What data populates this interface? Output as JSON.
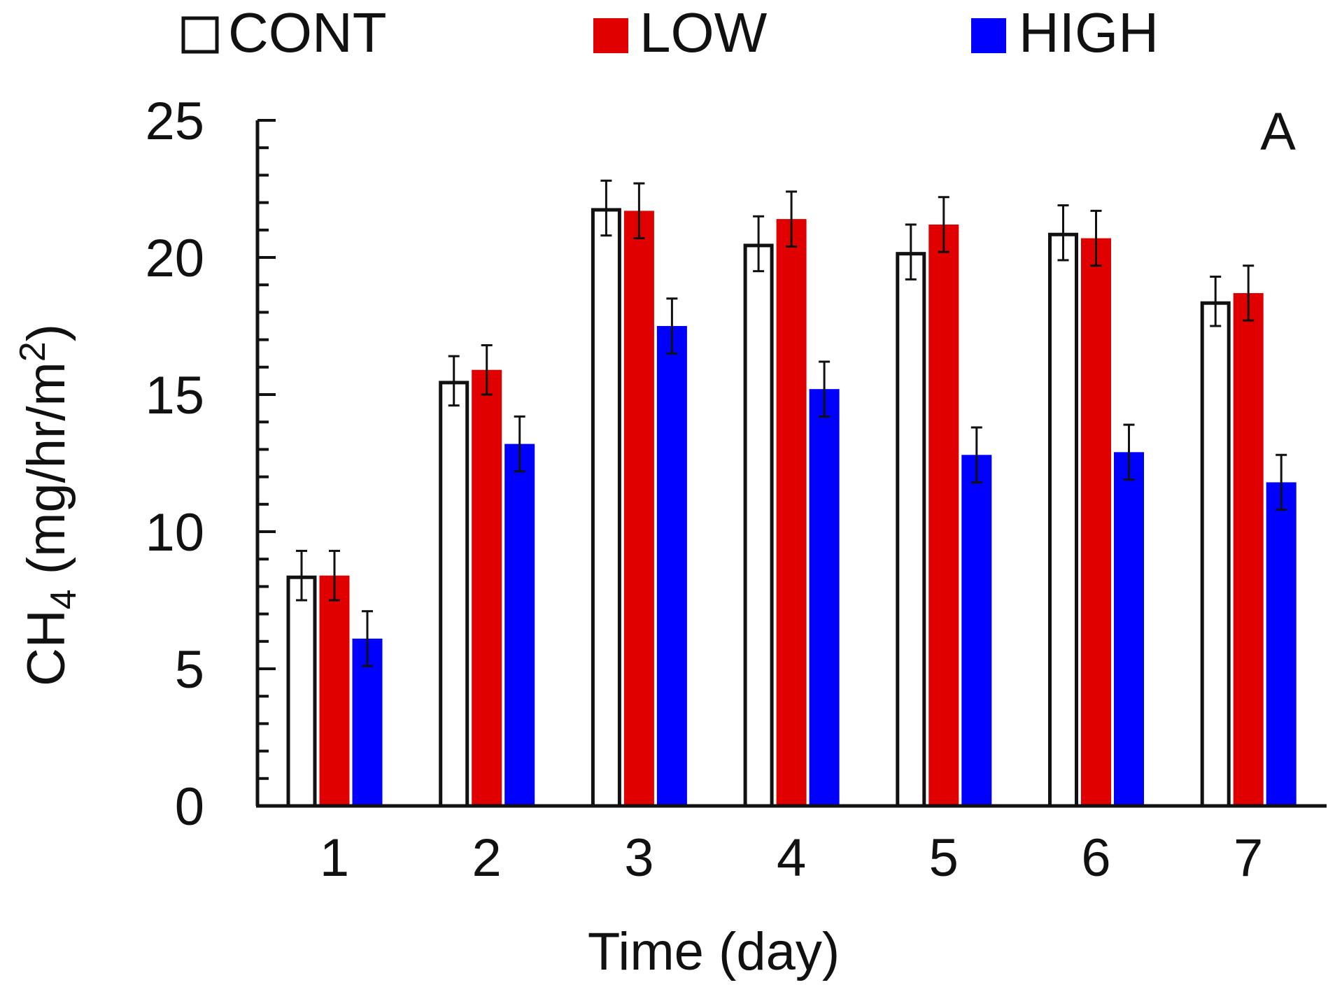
{
  "chart_data": {
    "type": "bar",
    "title": "",
    "panel_label": "A",
    "xlabel": "Time (day)",
    "ylabel": {
      "prefix": "CH",
      "subscript": "4",
      "units": " (mg/hr/m",
      "superscript": "2",
      "suffix": ")"
    },
    "ylim": [
      0,
      25
    ],
    "y_ticks": [
      0,
      5,
      10,
      15,
      20,
      25
    ],
    "y_minor_step": 1,
    "grid": false,
    "legend_position": "top",
    "categories": [
      "1",
      "2",
      "3",
      "4",
      "5",
      "6",
      "7"
    ],
    "series": [
      {
        "name": "CONT",
        "color": "#ffffff",
        "stroke": "#111111",
        "values": [
          8.4,
          15.5,
          21.8,
          20.5,
          20.2,
          20.9,
          18.4
        ],
        "errors": [
          0.9,
          0.9,
          1.0,
          1.0,
          1.0,
          1.0,
          0.9
        ]
      },
      {
        "name": "LOW",
        "color": "#e00000",
        "stroke": "none",
        "values": [
          8.4,
          15.9,
          21.7,
          21.4,
          21.2,
          20.7,
          18.7
        ],
        "errors": [
          0.9,
          0.9,
          1.0,
          1.0,
          1.0,
          1.0,
          1.0
        ]
      },
      {
        "name": "HIGH",
        "color": "#0000ff",
        "stroke": "none",
        "values": [
          6.1,
          13.2,
          17.5,
          15.2,
          12.8,
          12.9,
          11.8
        ],
        "errors": [
          1.0,
          1.0,
          1.0,
          1.0,
          1.0,
          1.0,
          1.0
        ]
      }
    ]
  }
}
